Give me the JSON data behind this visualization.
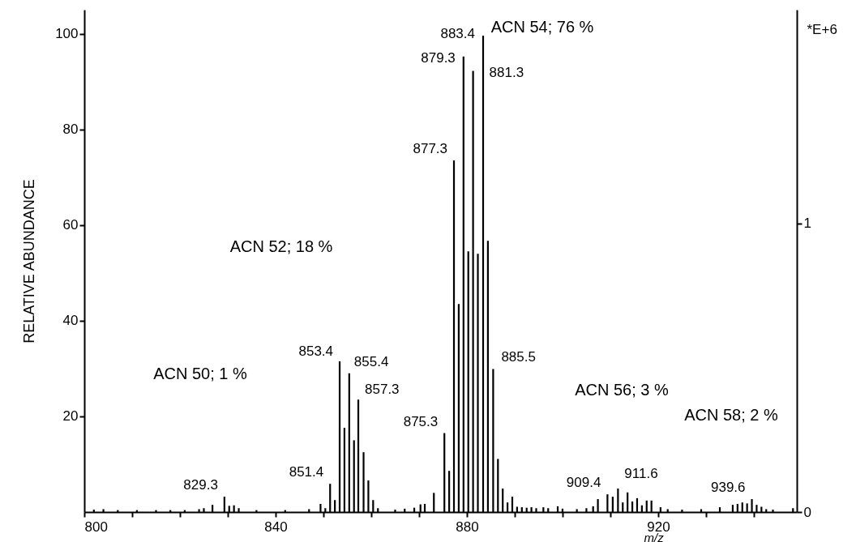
{
  "chart_data": {
    "type": "bar",
    "xlabel": "m/z",
    "ylabel": "RELATIVE ABUNDANCE",
    "y2label": "*E+6",
    "x": [
      802,
      804,
      807,
      811,
      815,
      818,
      821,
      824,
      825,
      826.8,
      829.3,
      830.3,
      831.3,
      832.3,
      836,
      842,
      847,
      849.4,
      850.4,
      851.4,
      852.4,
      853.4,
      854.4,
      855.4,
      856.4,
      857.3,
      858.4,
      859.4,
      860.4,
      861.4,
      865,
      867,
      869,
      870.3,
      871.2,
      873.1,
      875.3,
      876.3,
      877.3,
      878.3,
      879.3,
      880.3,
      881.3,
      882.3,
      883.4,
      884.4,
      885.5,
      886.5,
      887.5,
      888.5,
      889.5,
      890.5,
      891.5,
      892.5,
      893.5,
      894.5,
      896,
      897,
      899,
      900,
      903,
      905,
      906.4,
      907.4,
      909.4,
      910.5,
      911.6,
      912.6,
      913.6,
      914.6,
      915.6,
      916.6,
      917.6,
      918.6,
      920.5,
      922,
      925,
      929,
      932.9,
      935.6,
      936.6,
      937.6,
      938.6,
      939.6,
      940.6,
      941.6,
      942.6,
      944,
      948.2
    ],
    "values": [
      0.5,
      0.6,
      0.4,
      0.4,
      0.4,
      0.4,
      0.4,
      0.6,
      0.8,
      1.5,
      3.2,
      1.3,
      1.4,
      0.8,
      0.4,
      0.4,
      0.6,
      1.7,
      0.8,
      5.9,
      2.5,
      31.5,
      17.6,
      29,
      15,
      23.5,
      12.5,
      6.6,
      2.5,
      0.8,
      0.5,
      0.7,
      0.9,
      1.6,
      1.7,
      4,
      16.5,
      8.6,
      73.5,
      43.5,
      95.2,
      54.5,
      92.2,
      54,
      99.6,
      56.7,
      29.9,
      11.1,
      4.9,
      2,
      3.2,
      1.1,
      1,
      0.9,
      1,
      0.8,
      1,
      0.8,
      1.2,
      0.7,
      0.6,
      0.8,
      1.2,
      2.7,
      3.7,
      3.2,
      4.9,
      2,
      4.1,
      2.2,
      2.9,
      1.4,
      2.4,
      2.4,
      1,
      0.6,
      0.5,
      0.6,
      1,
      1.5,
      1.7,
      2,
      1.8,
      2.7,
      1.5,
      1.1,
      0.6,
      0.5,
      0.8
    ],
    "color": "#000000",
    "xlim": [
      800,
      949
    ],
    "xticks": [
      800,
      {
        "value": 810,
        "label": null
      },
      {
        "value": 820,
        "label": null
      },
      {
        "value": 830,
        "label": null
      },
      840,
      {
        "value": 850,
        "label": null
      },
      {
        "value": 860,
        "label": null
      },
      {
        "value": 870,
        "label": null
      },
      880,
      {
        "value": 890,
        "label": null
      },
      {
        "value": 900,
        "label": null
      },
      {
        "value": 910,
        "label": null
      },
      920,
      {
        "value": 930,
        "label": null
      },
      {
        "value": 940,
        "label": null
      }
    ],
    "ylim": [
      0,
      105
    ],
    "yticks": [
      20,
      40,
      60,
      80,
      100
    ],
    "y2lim": [
      0,
      1.74
    ],
    "y2ticks": [
      0,
      1
    ],
    "annotations": [
      "ACN 50; 1 %",
      {
        "text": "829.3",
        "x": 829.3,
        "y": 3.2
      },
      {
        "text": "851.4",
        "x": 851.4,
        "y": 5.9
      },
      {
        "text": "853.4",
        "x": 853.4,
        "y": 31.5
      },
      {
        "text": "855.4",
        "x": 855.4,
        "y": 29
      },
      {
        "text": "857.3",
        "x": 857.3,
        "y": 23.5
      },
      "ACN 52; 18 %",
      {
        "text": "875.3",
        "x": 875.3,
        "y": 16.5
      },
      {
        "text": "877.3",
        "x": 877.3,
        "y": 73.5
      },
      {
        "text": "879.3",
        "x": 879.3,
        "y": 95.2
      },
      {
        "text": "881.3",
        "x": 881.3,
        "y": 92.2
      },
      {
        "text": "883.4",
        "x": 883.4,
        "y": 99.6
      },
      "ACN 54; 76 %",
      {
        "text": "885.5",
        "x": 885.5,
        "y": 29.9
      },
      "ACN 56; 3 %",
      {
        "text": "909.4",
        "x": 909.4,
        "y": 3.7
      },
      {
        "text": "911.6",
        "x": 911.6,
        "y": 4.9
      },
      {
        "text": "939.6",
        "x": 939.6,
        "y": 2.7
      },
      "ACN 58; 2 %"
    ],
    "grid": false
  }
}
